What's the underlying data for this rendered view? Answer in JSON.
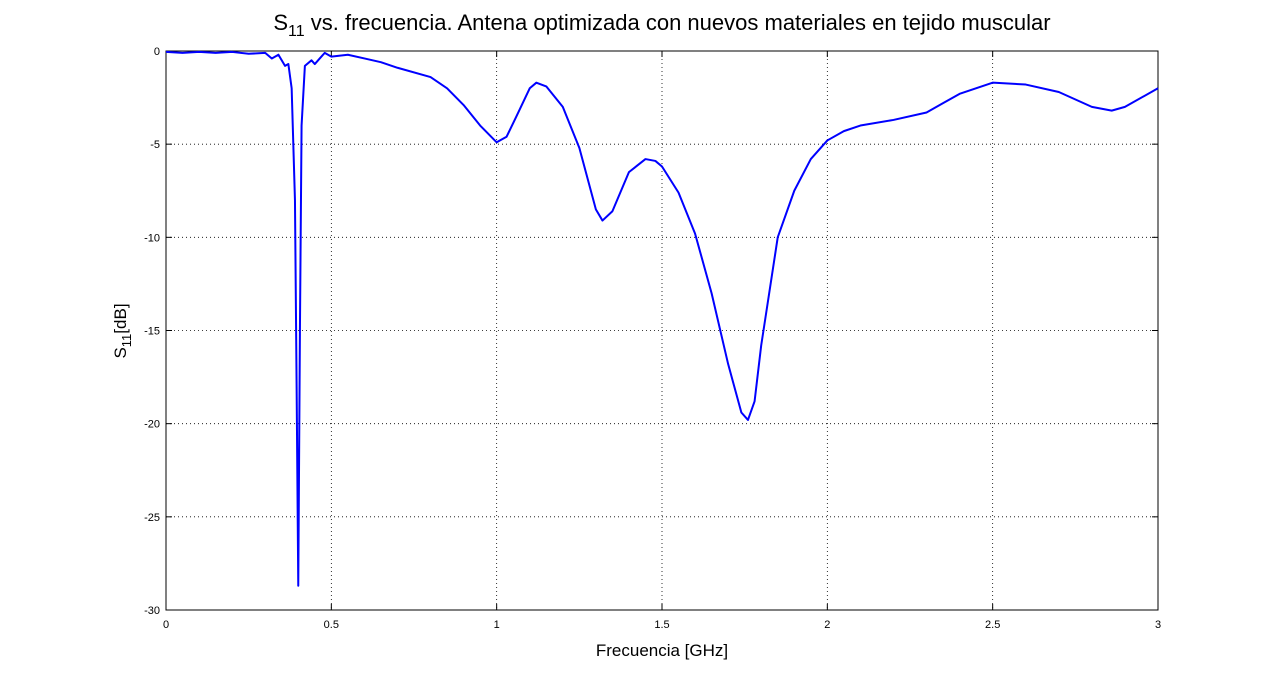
{
  "chart_data": {
    "type": "line",
    "title": {
      "base": "S",
      "subscript": "11",
      "text": " vs. frecuencia. Antena optimizada con nuevos materiales en tejido muscular"
    },
    "ylabel": {
      "base": "S",
      "subscript": "11",
      "text": "[dB]"
    },
    "xlabel": "Frecuencia [GHz]",
    "xlim": [
      0,
      3
    ],
    "ylim": [
      -30,
      0
    ],
    "xticks": [
      0,
      0.5,
      1,
      1.5,
      2,
      2.5,
      3
    ],
    "yticks": [
      -30,
      -25,
      -20,
      -15,
      -10,
      -5,
      0
    ],
    "grid": true,
    "series": [
      {
        "color": "#0000ff",
        "x": [
          0,
          0.05,
          0.1,
          0.15,
          0.2,
          0.25,
          0.3,
          0.32,
          0.34,
          0.36,
          0.37,
          0.38,
          0.39,
          0.395,
          0.4,
          0.405,
          0.41,
          0.42,
          0.44,
          0.45,
          0.47,
          0.48,
          0.5,
          0.55,
          0.6,
          0.65,
          0.7,
          0.8,
          0.85,
          0.9,
          0.95,
          1.0,
          1.03,
          1.06,
          1.1,
          1.12,
          1.15,
          1.2,
          1.25,
          1.3,
          1.32,
          1.35,
          1.4,
          1.45,
          1.48,
          1.5,
          1.55,
          1.6,
          1.65,
          1.7,
          1.74,
          1.76,
          1.78,
          1.8,
          1.85,
          1.9,
          1.95,
          2.0,
          2.05,
          2.1,
          2.2,
          2.3,
          2.35,
          2.4,
          2.5,
          2.6,
          2.7,
          2.8,
          2.86,
          2.9,
          3.0
        ],
        "values": [
          -0.05,
          -0.1,
          -0.05,
          -0.1,
          -0.05,
          -0.15,
          -0.1,
          -0.4,
          -0.2,
          -0.8,
          -0.7,
          -2,
          -8,
          -18,
          -28.7,
          -15,
          -4,
          -0.8,
          -0.5,
          -0.7,
          -0.3,
          -0.1,
          -0.3,
          -0.2,
          -0.4,
          -0.6,
          -0.9,
          -1.4,
          -2.0,
          -2.9,
          -4.0,
          -4.9,
          -4.6,
          -3.5,
          -2.0,
          -1.7,
          -1.9,
          -3.0,
          -5.2,
          -8.5,
          -9.1,
          -8.6,
          -6.5,
          -5.8,
          -5.9,
          -6.2,
          -7.6,
          -9.8,
          -13,
          -16.8,
          -19.4,
          -19.8,
          -18.8,
          -15.8,
          -10,
          -7.5,
          -5.8,
          -4.8,
          -4.3,
          -4.0,
          -3.7,
          -3.3,
          -2.8,
          -2.3,
          -1.7,
          -1.8,
          -2.2,
          -3.0,
          -3.2,
          -3.0,
          -2.0
        ]
      }
    ]
  }
}
